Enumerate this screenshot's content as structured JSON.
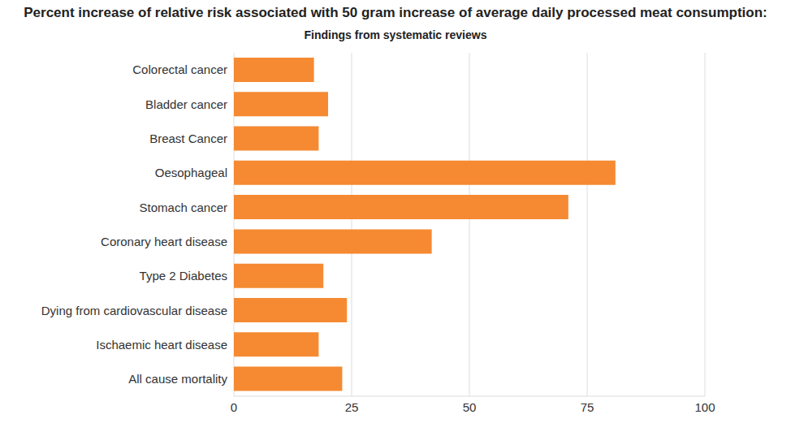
{
  "chart_data": {
    "type": "bar",
    "title": "Percent increase of relative risk associated with 50 gram increase of average daily processed meat consumption:",
    "subtitle": "Findings from systematic reviews",
    "orientation": "horizontal",
    "categories": [
      "Colorectal cancer",
      "Bladder cancer",
      "Breast Cancer",
      "Oesophageal",
      "Stomach cancer",
      "Coronary heart disease",
      "Type 2 Diabetes",
      "Dying from cardiovascular disease",
      "Ischaemic heart disease",
      "All cause mortality"
    ],
    "values": [
      17,
      20,
      18,
      81,
      71,
      42,
      19,
      24,
      18,
      23
    ],
    "color": "#f58a32",
    "xlim": [
      0,
      100
    ],
    "xticks": [
      0,
      25,
      50,
      75,
      100
    ],
    "grid": true
  }
}
